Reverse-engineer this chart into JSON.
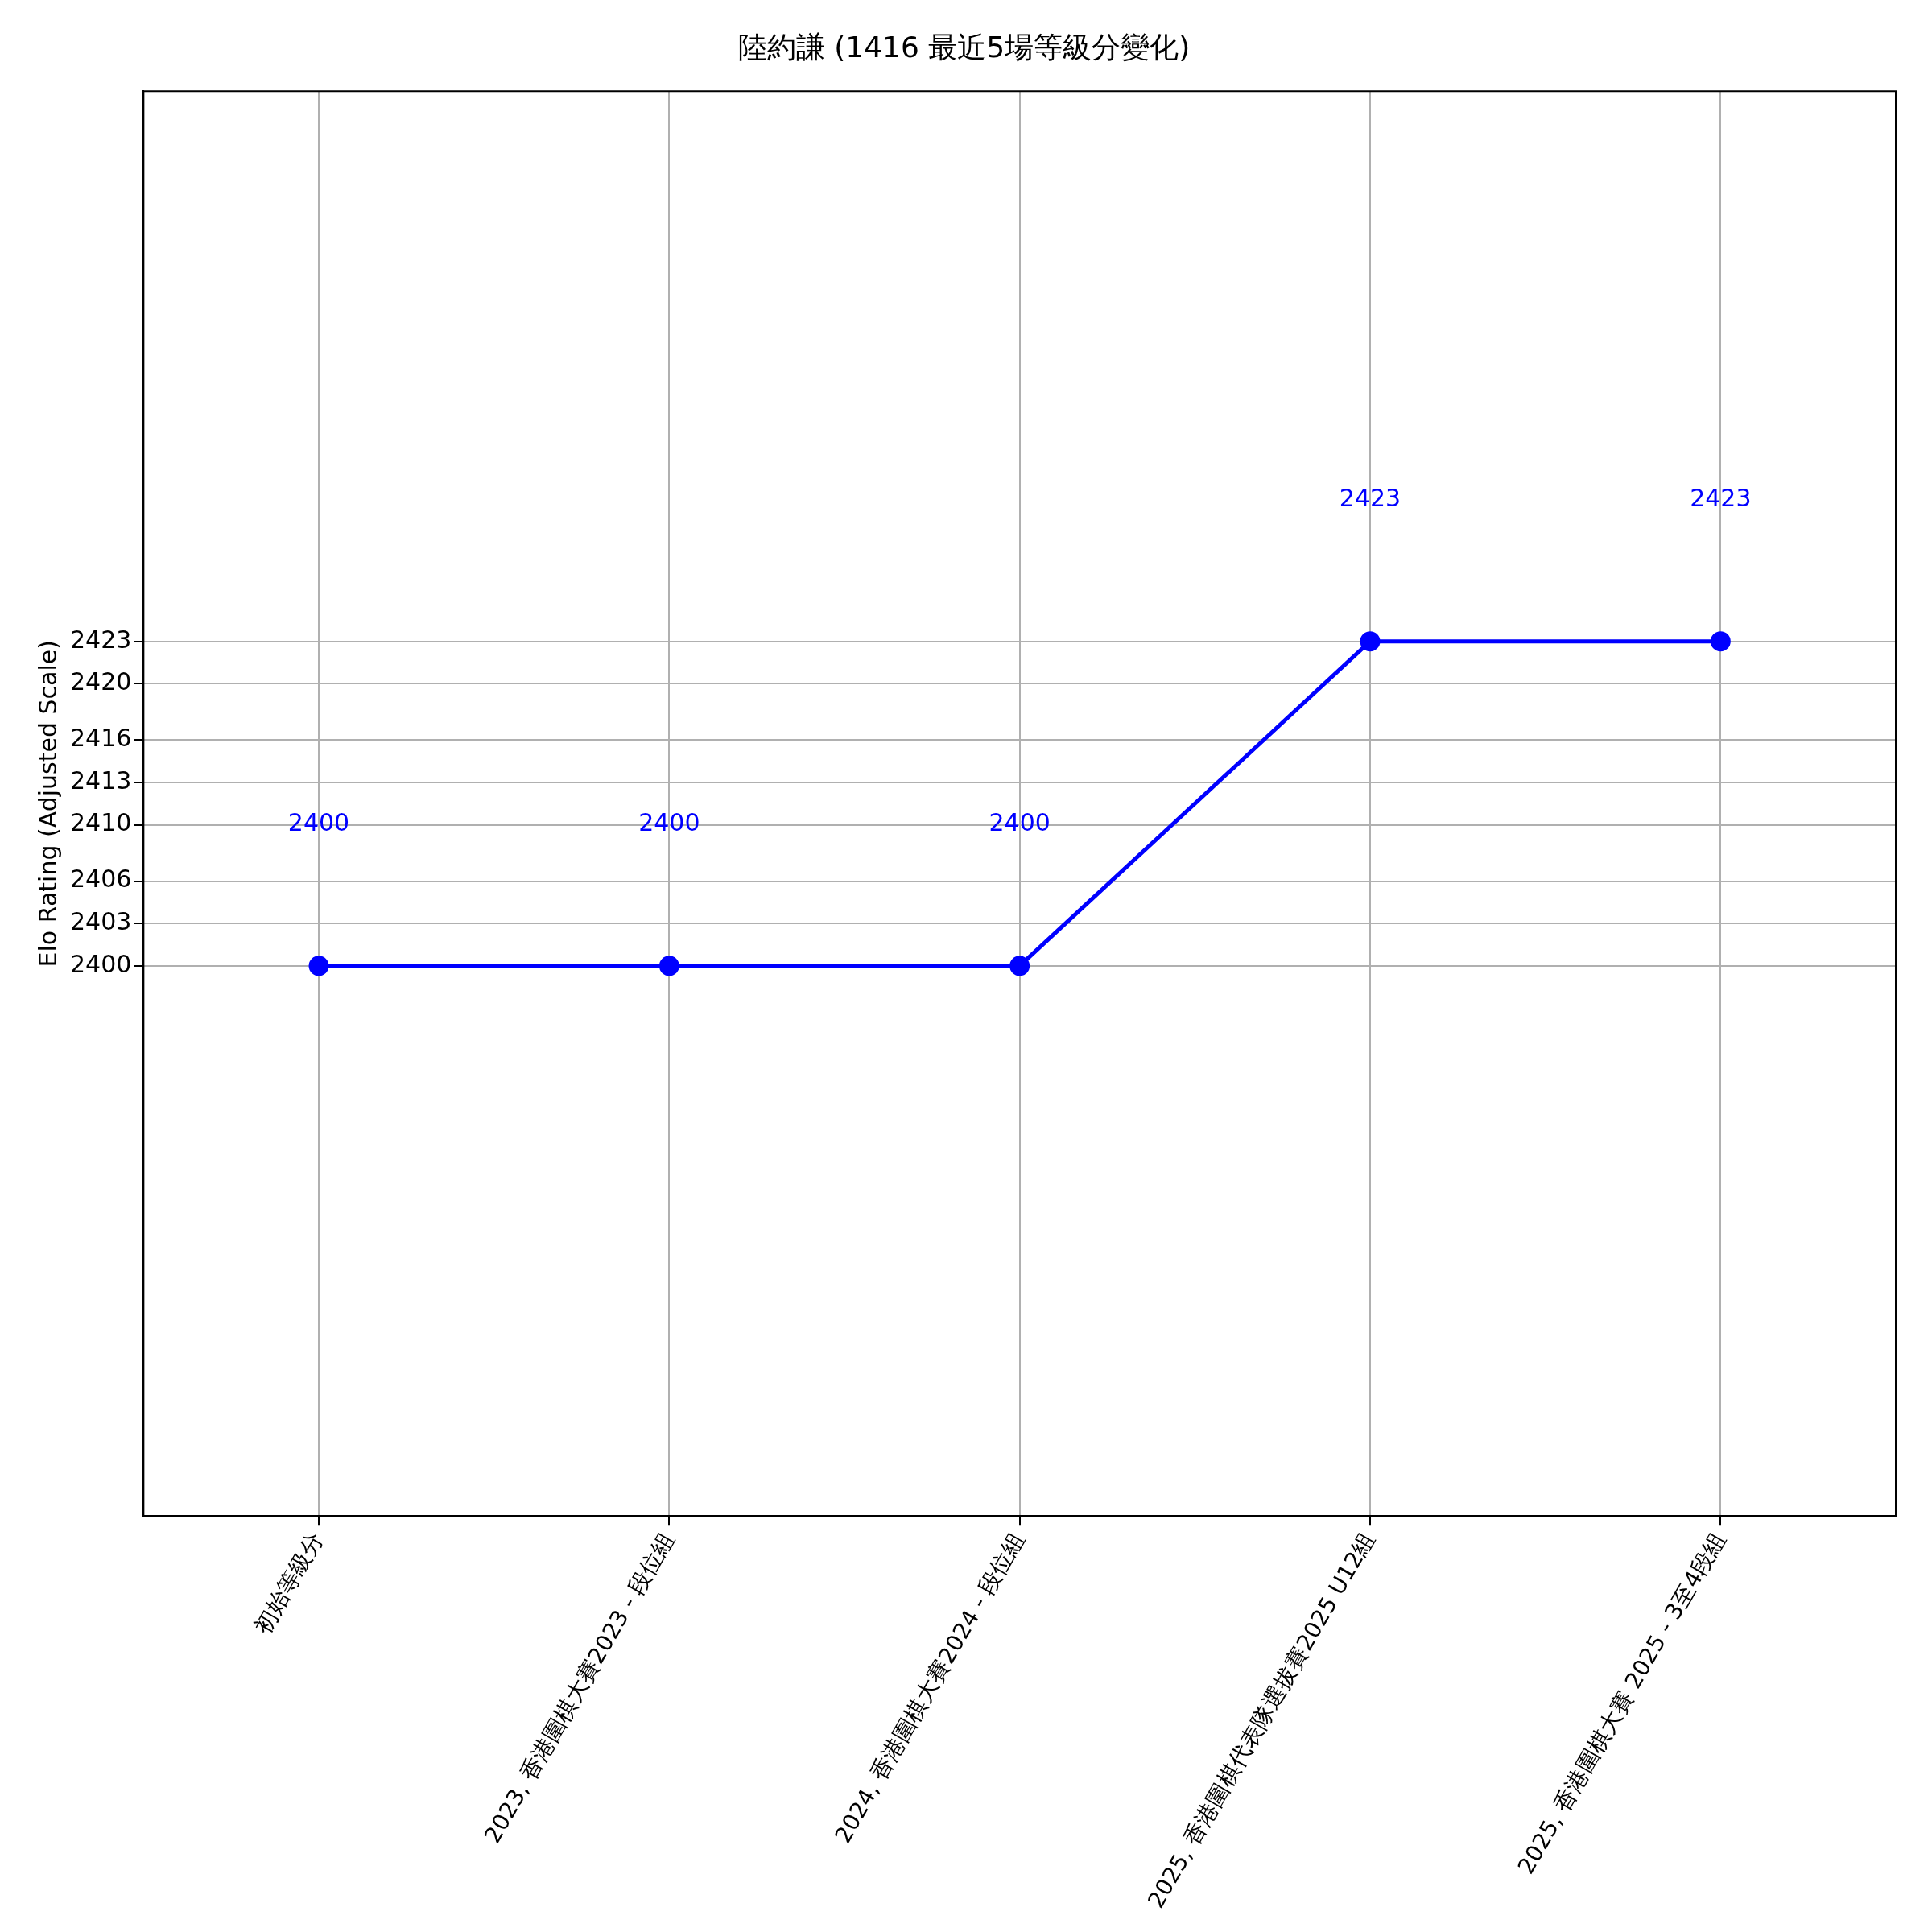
{
  "chart_data": {
    "type": "line",
    "title": "陸約謙 (1416 最近5場等級分變化)",
    "ylabel": "Elo Rating (Adjusted Scale)",
    "categories": [
      "初始等級分",
      "2023, 香港圍棋大賽2023 - 段位組",
      "2024, 香港圍棋大賽2024 - 段位組",
      "2025, 香港圍棋代表隊選拔賽2025 U12組",
      "2025, 香港圍棋大賽 2025 - 3至4段組"
    ],
    "series": [
      {
        "color": "#0000ff",
        "values": [
          2400,
          2400,
          2400,
          2423,
          2423
        ]
      }
    ],
    "ylim": [
      2361,
      2462
    ],
    "yticks": [
      2400,
      2403,
      2406,
      2410,
      2413,
      2416,
      2420,
      2423
    ],
    "annotations": [
      "2400",
      "2400",
      "2400",
      "2423",
      "2423"
    ],
    "grid": true,
    "marker": "circle",
    "line_style": "solid"
  }
}
